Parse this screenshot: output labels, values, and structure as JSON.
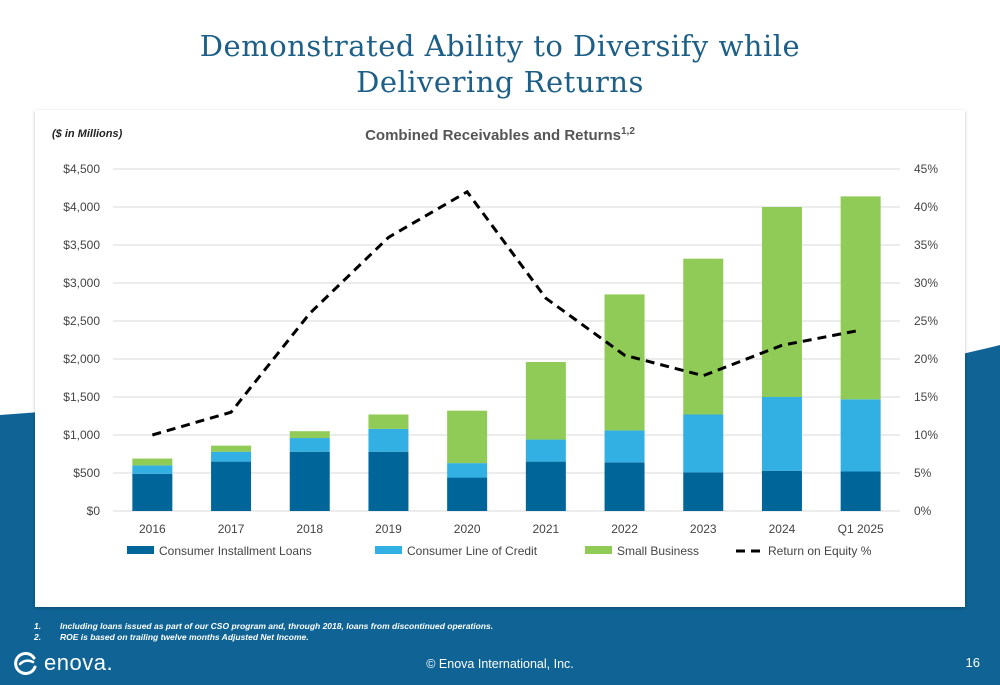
{
  "slide": {
    "title_line1": "Demonstrated Ability to Diversify while",
    "title_line2": "Delivering Returns",
    "units_note": "($ in Millions)",
    "footnotes": [
      {
        "num": "1.",
        "text": "Including loans issued as part of our CSO program and, through 2018, loans from discontinued operations."
      },
      {
        "num": "2.",
        "text": "ROE is based on trailing twelve months Adjusted Net Income."
      }
    ],
    "logo_text": "enova.",
    "copyright": "© Enova International, Inc.",
    "page_number": "16",
    "colors": {
      "title": "#1d5f87",
      "band": "#0f6495"
    }
  },
  "chart_data": {
    "type": "bar",
    "stacked": true,
    "title": "Combined Receivables and Returns",
    "title_superscript": "1,2",
    "categories": [
      "2016",
      "2017",
      "2018",
      "2019",
      "2020",
      "2021",
      "2022",
      "2023",
      "2024",
      "Q1 2025"
    ],
    "series": [
      {
        "name": "Consumer Installment Loans",
        "color": "#00669a",
        "axis": "left",
        "values": [
          490,
          650,
          780,
          780,
          440,
          650,
          640,
          510,
          530,
          520
        ]
      },
      {
        "name": "Consumer Line of Credit",
        "color": "#33b0e3",
        "axis": "left",
        "values": [
          110,
          130,
          180,
          300,
          190,
          290,
          420,
          760,
          970,
          950
        ]
      },
      {
        "name": "Small Business",
        "color": "#8fcb56",
        "axis": "left",
        "values": [
          90,
          80,
          90,
          190,
          690,
          1020,
          1790,
          2050,
          2500,
          2670
        ]
      },
      {
        "name": "Return on Equity %",
        "type": "line",
        "style": "dashed",
        "color": "#000000",
        "axis": "right",
        "values": [
          10,
          13,
          26,
          36,
          42,
          28,
          20.5,
          17.8,
          21.8,
          23.8
        ]
      }
    ],
    "y_left": {
      "min": 0,
      "max": 4500,
      "step": 500,
      "tick_labels": [
        "$0",
        "$500",
        "$1,000",
        "$1,500",
        "$2,000",
        "$2,500",
        "$3,000",
        "$3,500",
        "$4,000",
        "$4,500"
      ]
    },
    "y_right": {
      "min": 0,
      "max": 45,
      "step": 5,
      "tick_labels": [
        "0%",
        "5%",
        "10%",
        "15%",
        "20%",
        "25%",
        "30%",
        "35%",
        "40%",
        "45%"
      ]
    },
    "grid": true,
    "legend": "bottom"
  }
}
